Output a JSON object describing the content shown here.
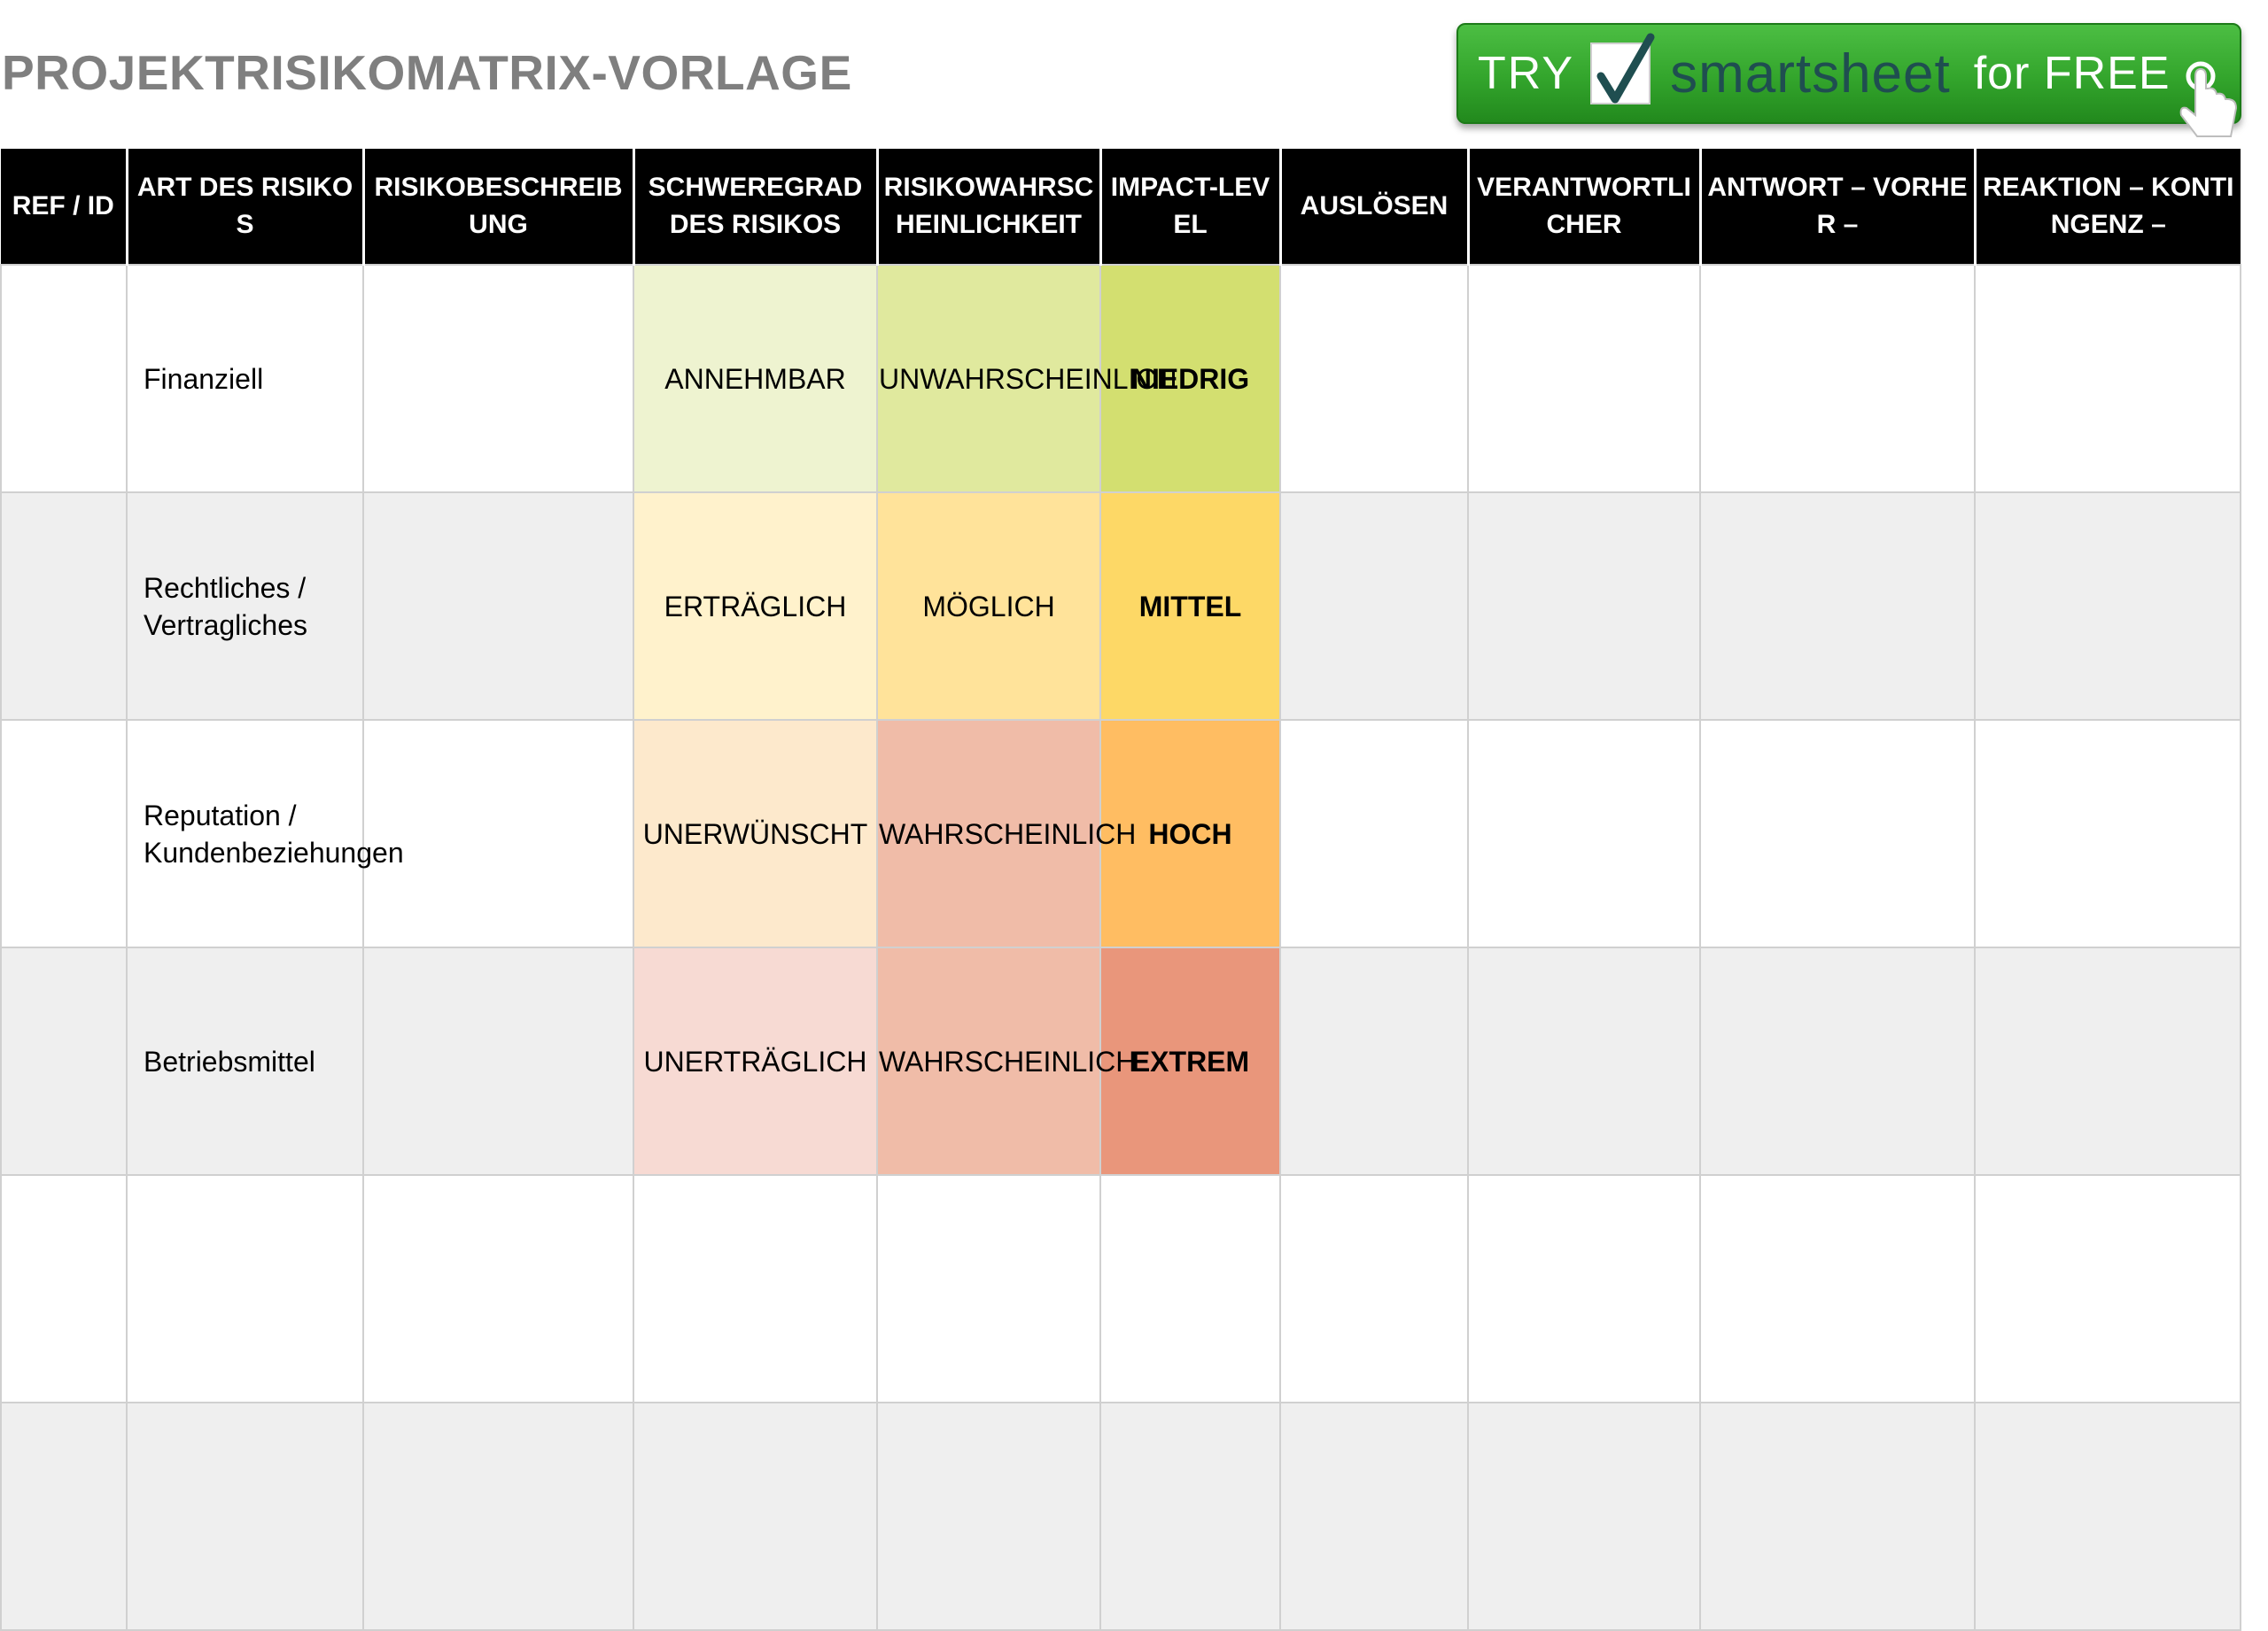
{
  "title": "PROJEKTRISIKOMATRIX-VORLAGE",
  "banner": {
    "try": "TRY",
    "brand": "smartsheet",
    "free": "for FREE",
    "colors": {
      "green": "#33a52c",
      "brand_text": "#1f4e50"
    }
  },
  "headers": [
    "REF / ID",
    "ART DES RISIKOS",
    "RISIKOBESCHREIBUNG",
    "SCHWEREGRAD DES RISIKOS",
    "RISIKOWAHRSCHEINLICHKEIT",
    "IMPACT-LEVEL",
    "AUSLÖSEN",
    "VERANTWORTLICHER",
    "ANTWORT – VORHER –",
    "REAKTION – KONTINGENZ –"
  ],
  "rows": [
    {
      "ref": "",
      "type": "Finanziell",
      "desc": "",
      "severity": "ANNEHMBAR",
      "probability": "UNWAHRSCHEINLICH",
      "impact": "NIEDRIG",
      "trigger": "",
      "owner": "",
      "response_before": "",
      "response_contingency": ""
    },
    {
      "ref": "",
      "type": "Rechtliches / Vertragliches",
      "desc": "",
      "severity": "ERTRÄGLICH",
      "probability": "MÖGLICH",
      "impact": "MITTEL",
      "trigger": "",
      "owner": "",
      "response_before": "",
      "response_contingency": ""
    },
    {
      "ref": "",
      "type": "Reputation / Kundenbeziehungen",
      "desc": "",
      "severity": "UNERWÜNSCHT",
      "probability": "WAHRSCHEINLICH",
      "impact": "HOCH",
      "trigger": "",
      "owner": "",
      "response_before": "",
      "response_contingency": ""
    },
    {
      "ref": "",
      "type": "Betriebsmittel",
      "desc": "",
      "severity": "UNERTRÄGLICH",
      "probability": "WAHRSCHEINLICH",
      "impact": "EXTREM",
      "trigger": "",
      "owner": "",
      "response_before": "",
      "response_contingency": ""
    },
    {
      "ref": "",
      "type": "",
      "desc": "",
      "severity": "",
      "probability": "",
      "impact": "",
      "trigger": "",
      "owner": "",
      "response_before": "",
      "response_contingency": ""
    },
    {
      "ref": "",
      "type": "",
      "desc": "",
      "severity": "",
      "probability": "",
      "impact": "",
      "trigger": "",
      "owner": "",
      "response_before": "",
      "response_contingency": ""
    }
  ],
  "level_colors": {
    "severity": [
      "#eef3d0",
      "#fff2cc",
      "#fde9cc",
      "#f7dad3"
    ],
    "probability": [
      "#e0e99e",
      "#ffe39a",
      "#f0bca8",
      "#f0bca8"
    ],
    "impact": [
      "#d3df70",
      "#fdd866",
      "#ffbd62",
      "#e9967b"
    ]
  }
}
